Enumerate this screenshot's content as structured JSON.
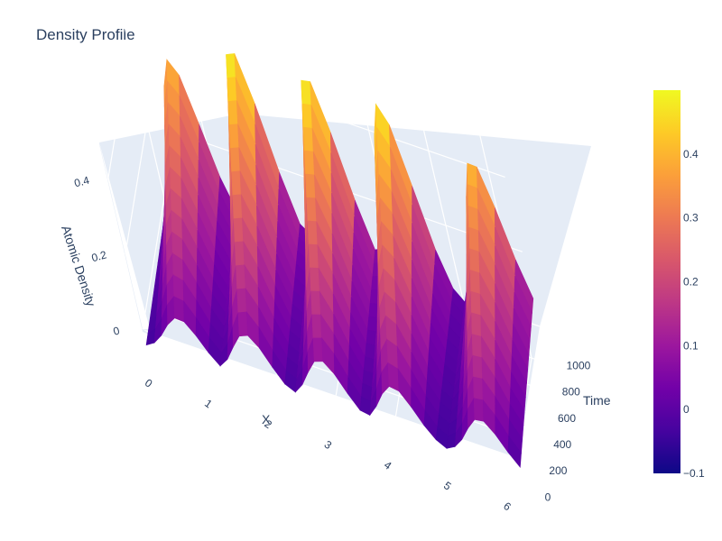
{
  "chart_data": {
    "type": "surface",
    "title": "Density Profile",
    "xlabel": "X",
    "ylabel": "Time",
    "zlabel": "Atomic Density",
    "x_ticks": [
      "0",
      "1",
      "2",
      "3",
      "4",
      "5",
      "6"
    ],
    "y_ticks": [
      "0",
      "200",
      "400",
      "600",
      "800",
      "1000"
    ],
    "z_ticks": [
      "0",
      "0.2",
      "0.4"
    ],
    "xlim": [
      0,
      6.28
    ],
    "ylim": [
      0,
      1000
    ],
    "zlim": [
      -0.1,
      0.5
    ],
    "colorscale": "plasma",
    "colorbar": {
      "range": [
        -0.1,
        0.5
      ],
      "ticks": [
        "−0.1",
        "0",
        "0.1",
        "0.2",
        "0.3",
        "0.4"
      ],
      "colors": [
        "#0d0887",
        "#46039f",
        "#7201a8",
        "#9c179e",
        "#bd3786",
        "#d8576b",
        "#ed7953",
        "#fb9f3a",
        "#fdca26",
        "#f0f921"
      ]
    },
    "peaks": [
      {
        "x": 0.7,
        "z_max": 0.42
      },
      {
        "x": 1.85,
        "z_max": 0.5
      },
      {
        "x": 3.1,
        "z_max": 0.5
      },
      {
        "x": 4.3,
        "z_max": 0.48
      },
      {
        "x": 5.75,
        "z_max": 0.45
      }
    ],
    "trough_min": -0.1
  }
}
